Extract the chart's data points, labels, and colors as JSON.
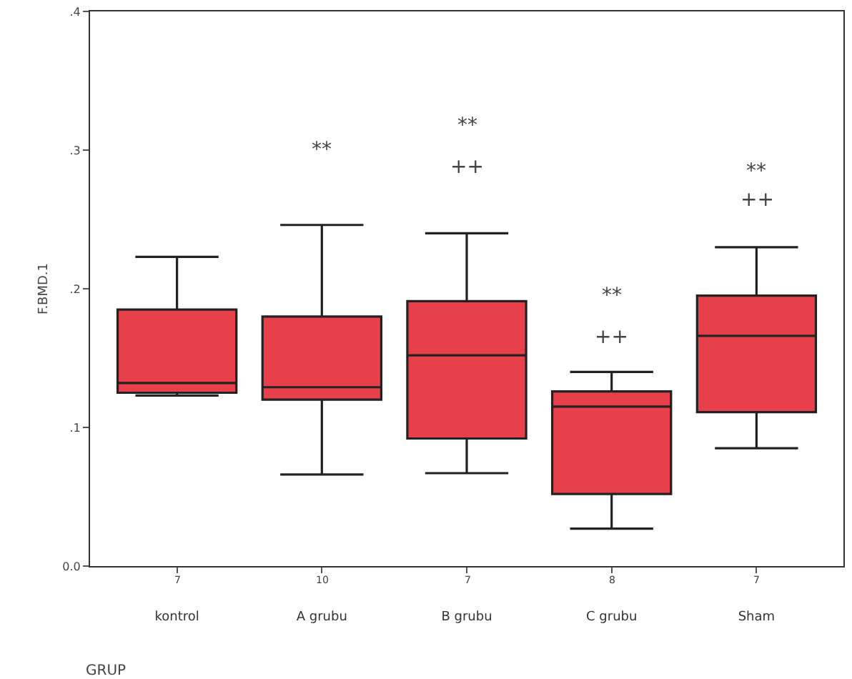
{
  "chart_data": {
    "type": "box",
    "xlabel": "GRUP",
    "ylabel": "F.BMD.1",
    "categories": [
      "kontrol",
      "A grubu",
      "B grubu",
      "C grubu",
      "Sham"
    ],
    "color": "#e8404a",
    "boxes": [
      {
        "low": 0.123,
        "q1": 0.125,
        "median": 0.132,
        "q3": 0.185,
        "high": 0.223
      },
      {
        "low": 0.066,
        "q1": 0.12,
        "median": 0.129,
        "q3": 0.18,
        "high": 0.246
      },
      {
        "low": 0.067,
        "q1": 0.092,
        "median": 0.152,
        "q3": 0.191,
        "high": 0.24
      },
      {
        "low": 0.027,
        "q1": 0.052,
        "median": 0.115,
        "q3": 0.126,
        "high": 0.14
      },
      {
        "low": 0.085,
        "q1": 0.111,
        "median": 0.166,
        "q3": 0.195,
        "high": 0.23
      }
    ],
    "ylim": [
      0,
      0.4
    ],
    "yticks": [
      {
        "value": 0,
        "label": "0.0"
      },
      {
        "value": 0.1,
        "label": ".1"
      },
      {
        "value": 0.2,
        "label": ".2"
      },
      {
        "value": 0.3,
        "label": ".3"
      },
      {
        "value": 0.4,
        "label": ".4"
      }
    ],
    "grid": false,
    "annotations": [
      "**",
      "**",
      "++",
      "**",
      "++",
      "**",
      "++",
      "7",
      "10",
      "7",
      "8",
      "7"
    ]
  }
}
